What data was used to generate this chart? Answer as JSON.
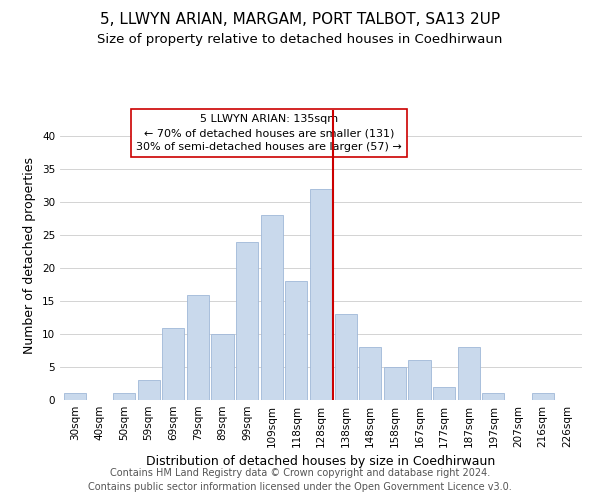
{
  "title": "5, LLWYN ARIAN, MARGAM, PORT TALBOT, SA13 2UP",
  "subtitle": "Size of property relative to detached houses in Coedhirwaun",
  "xlabel": "Distribution of detached houses by size in Coedhirwaun",
  "ylabel": "Number of detached properties",
  "bar_labels": [
    "30sqm",
    "40sqm",
    "50sqm",
    "59sqm",
    "69sqm",
    "79sqm",
    "89sqm",
    "99sqm",
    "109sqm",
    "118sqm",
    "128sqm",
    "138sqm",
    "148sqm",
    "158sqm",
    "167sqm",
    "177sqm",
    "187sqm",
    "197sqm",
    "207sqm",
    "216sqm",
    "226sqm"
  ],
  "bar_heights": [
    1,
    0,
    1,
    3,
    11,
    16,
    10,
    24,
    28,
    18,
    32,
    13,
    8,
    5,
    6,
    2,
    8,
    1,
    0,
    1,
    0
  ],
  "bar_color": "#c9d9ec",
  "bar_edge_color": "#a0b8d8",
  "vline_color": "#cc0000",
  "ylim": [
    0,
    44
  ],
  "yticks": [
    0,
    5,
    10,
    15,
    20,
    25,
    30,
    35,
    40
  ],
  "annotation_title": "5 LLWYN ARIAN: 135sqm",
  "annotation_line1": "← 70% of detached houses are smaller (131)",
  "annotation_line2": "30% of semi-detached houses are larger (57) →",
  "annotation_box_color": "#ffffff",
  "annotation_box_edge": "#cc0000",
  "footer_line1": "Contains HM Land Registry data © Crown copyright and database right 2024.",
  "footer_line2": "Contains public sector information licensed under the Open Government Licence v3.0.",
  "title_fontsize": 11,
  "subtitle_fontsize": 9.5,
  "axis_label_fontsize": 9,
  "tick_fontsize": 7.5,
  "annotation_fontsize": 8,
  "footer_fontsize": 7
}
